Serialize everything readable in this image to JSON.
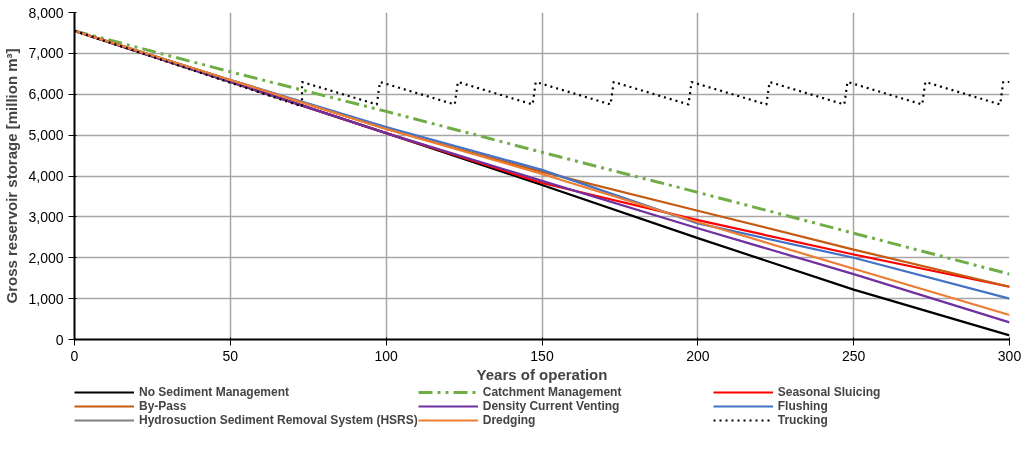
{
  "chart_data": {
    "type": "line",
    "xlabel": "Years of operation",
    "ylabel": "Gross reservoir storage [million m³]",
    "xlim": [
      0,
      300
    ],
    "xticks": [
      0,
      50,
      100,
      150,
      200,
      250,
      300
    ],
    "ylim": [
      0,
      8000
    ],
    "yticks": [
      {
        "value": 0,
        "label": "0"
      },
      {
        "value": 1000,
        "label": "1,000"
      },
      {
        "value": 2000,
        "label": "2,000"
      },
      {
        "value": 3000,
        "label": "3,000"
      },
      {
        "value": 4000,
        "label": "4,000"
      },
      {
        "value": 5000,
        "label": "5,000"
      },
      {
        "value": 6000,
        "label": "6,000"
      },
      {
        "value": 7000,
        "label": "7,000"
      },
      {
        "value": 8000,
        "label": "8,000"
      }
    ],
    "grid": true,
    "legend": "bottom",
    "marker": "none",
    "series": [
      {
        "name": "No Sediment Management",
        "color": "#000000",
        "line_style": "solid",
        "x": [
          0,
          50,
          100,
          150,
          200,
          250,
          300
        ],
        "values": [
          7550,
          6300,
          5050,
          3780,
          2480,
          1220,
          100
        ]
      },
      {
        "name": "Catchment Management",
        "color": "#70ad47",
        "line_style": "dashed",
        "x": [
          0,
          50,
          100,
          150,
          200,
          250,
          300
        ],
        "values": [
          7550,
          6550,
          5580,
          4580,
          3600,
          2600,
          1600
        ]
      },
      {
        "name": "Seasonal Sluicing",
        "color": "#ff0000",
        "line_style": "solid",
        "x": [
          0,
          50,
          100,
          150,
          200,
          250,
          300
        ],
        "values": [
          7550,
          6300,
          5050,
          3830,
          2920,
          2080,
          1290
        ]
      },
      {
        "name": "By-Pass",
        "color": "#c55a11",
        "line_style": "solid",
        "x": [
          0,
          50,
          100,
          150,
          200,
          250,
          300
        ],
        "values": [
          7550,
          6350,
          5150,
          4100,
          3150,
          2200,
          1290
        ]
      },
      {
        "name": "Density Current Venting",
        "color": "#7030a0",
        "line_style": "solid",
        "x": [
          0,
          50,
          100,
          150,
          200,
          250,
          300
        ],
        "values": [
          7550,
          6300,
          5050,
          3880,
          2720,
          1600,
          420
        ]
      },
      {
        "name": "Flushing",
        "color": "#4472c4",
        "line_style": "solid",
        "x": [
          0,
          50,
          100,
          150,
          200,
          250,
          300
        ],
        "values": [
          7550,
          6350,
          5200,
          4150,
          2840,
          2000,
          1000
        ]
      },
      {
        "name": "Hydrosuction Sediment Removal System (HSRS)",
        "color": "#808080",
        "line_style": "solid"
      },
      {
        "name": "Dredging",
        "color": "#ed7d31",
        "line_style": "solid",
        "x": [
          0,
          50,
          100,
          150,
          200,
          250,
          300
        ],
        "values": [
          7550,
          6350,
          5150,
          4050,
          2870,
          1730,
          600
        ]
      },
      {
        "name": "Trucking",
        "color": "#000000",
        "line_style": "dotted",
        "x": [
          0,
          73,
          73,
          97,
          98,
          122,
          123,
          147,
          148,
          172,
          173,
          197,
          198,
          222,
          223,
          247,
          248,
          272,
          273,
          297,
          298,
          300
        ],
        "values": [
          7550,
          5700,
          6300,
          5750,
          6300,
          5750,
          6300,
          5750,
          6300,
          5750,
          6300,
          5750,
          6300,
          5750,
          6300,
          5750,
          6300,
          5750,
          6300,
          5750,
          6300,
          6300
        ]
      }
    ]
  }
}
